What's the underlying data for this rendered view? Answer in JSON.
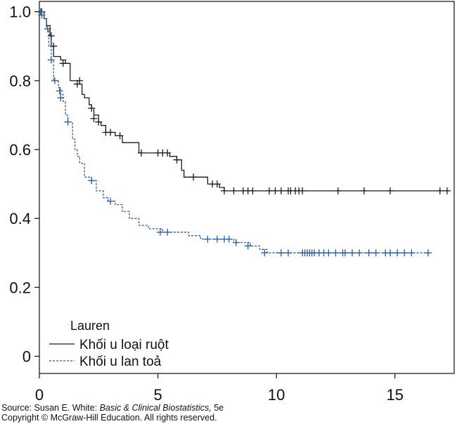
{
  "chart_data": {
    "type": "line",
    "title": "",
    "xlabel": "",
    "ylabel": "",
    "xlim": [
      0,
      17.5
    ],
    "ylim": [
      -0.05,
      1.03
    ],
    "x_ticks": [
      0,
      5,
      10,
      15
    ],
    "x_tick_labels": [
      "0",
      "5",
      "10",
      "15"
    ],
    "y_ticks": [
      0,
      0.2,
      0.4,
      0.6,
      0.8,
      1.0
    ],
    "y_tick_labels": [
      "0",
      "0.2",
      "0.4",
      "0.6",
      "0.8",
      "1.0"
    ],
    "grid": false,
    "legend": {
      "title": "Lauren",
      "placement": "bottom-left",
      "entries": [
        "Khối u loại ruột",
        "Khối u lan toả"
      ]
    },
    "series": [
      {
        "name": "Khối u loại ruột",
        "color": "#1a1a1a",
        "dash": "solid",
        "steps": [
          [
            0,
            1.0
          ],
          [
            0.2,
            0.98
          ],
          [
            0.3,
            0.96
          ],
          [
            0.45,
            0.93
          ],
          [
            0.5,
            0.9
          ],
          [
            0.6,
            0.87
          ],
          [
            0.9,
            0.86
          ],
          [
            1.1,
            0.85
          ],
          [
            1.3,
            0.8
          ],
          [
            1.7,
            0.79
          ],
          [
            1.8,
            0.76
          ],
          [
            1.9,
            0.75
          ],
          [
            2.1,
            0.73
          ],
          [
            2.2,
            0.72
          ],
          [
            2.3,
            0.7
          ],
          [
            2.5,
            0.68
          ],
          [
            2.6,
            0.67
          ],
          [
            2.8,
            0.65
          ],
          [
            3.2,
            0.64
          ],
          [
            3.5,
            0.62
          ],
          [
            4.2,
            0.59
          ],
          [
            5.5,
            0.58
          ],
          [
            5.8,
            0.57
          ],
          [
            6.0,
            0.54
          ],
          [
            6.1,
            0.52
          ],
          [
            7.1,
            0.5
          ],
          [
            7.6,
            0.49
          ],
          [
            7.8,
            0.48
          ],
          [
            17.3,
            0.48
          ]
        ],
        "censored": [
          [
            0.1,
            1.0
          ],
          [
            0.5,
            0.93
          ],
          [
            0.6,
            0.9
          ],
          [
            1.0,
            0.85
          ],
          [
            1.6,
            0.79
          ],
          [
            1.7,
            0.8
          ],
          [
            2.2,
            0.72
          ],
          [
            2.3,
            0.69
          ],
          [
            2.5,
            0.68
          ],
          [
            2.8,
            0.65
          ],
          [
            3.0,
            0.65
          ],
          [
            3.4,
            0.64
          ],
          [
            4.3,
            0.59
          ],
          [
            5.0,
            0.59
          ],
          [
            5.2,
            0.59
          ],
          [
            5.4,
            0.59
          ],
          [
            5.8,
            0.57
          ],
          [
            6.5,
            0.52
          ],
          [
            7.3,
            0.5
          ],
          [
            7.5,
            0.5
          ],
          [
            7.8,
            0.48
          ],
          [
            8.2,
            0.48
          ],
          [
            8.6,
            0.48
          ],
          [
            8.8,
            0.48
          ],
          [
            9.0,
            0.48
          ],
          [
            9.7,
            0.48
          ],
          [
            9.95,
            0.48
          ],
          [
            10.2,
            0.48
          ],
          [
            10.5,
            0.48
          ],
          [
            10.6,
            0.48
          ],
          [
            10.8,
            0.48
          ],
          [
            10.95,
            0.48
          ],
          [
            11.1,
            0.48
          ],
          [
            12.6,
            0.48
          ],
          [
            13.7,
            0.48
          ],
          [
            14.8,
            0.48
          ],
          [
            16.9,
            0.48
          ],
          [
            17.2,
            0.48
          ]
        ]
      },
      {
        "name": "Khối u lan toả",
        "color": "#2a5aa0",
        "dash": "dashed",
        "steps": [
          [
            0,
            1.0
          ],
          [
            0.2,
            0.98
          ],
          [
            0.3,
            0.95
          ],
          [
            0.4,
            0.9
          ],
          [
            0.5,
            0.86
          ],
          [
            0.6,
            0.8
          ],
          [
            0.8,
            0.78
          ],
          [
            0.9,
            0.76
          ],
          [
            1.0,
            0.74
          ],
          [
            1.1,
            0.7
          ],
          [
            1.2,
            0.68
          ],
          [
            1.4,
            0.63
          ],
          [
            1.5,
            0.6
          ],
          [
            1.6,
            0.58
          ],
          [
            1.7,
            0.56
          ],
          [
            1.9,
            0.52
          ],
          [
            2.2,
            0.51
          ],
          [
            2.4,
            0.48
          ],
          [
            2.7,
            0.46
          ],
          [
            2.9,
            0.45
          ],
          [
            3.2,
            0.44
          ],
          [
            3.5,
            0.42
          ],
          [
            3.8,
            0.4
          ],
          [
            4.2,
            0.38
          ],
          [
            4.6,
            0.37
          ],
          [
            5.2,
            0.36
          ],
          [
            6.3,
            0.35
          ],
          [
            6.8,
            0.34
          ],
          [
            7.9,
            0.34
          ],
          [
            8.2,
            0.33
          ],
          [
            8.9,
            0.32
          ],
          [
            9.3,
            0.31
          ],
          [
            9.6,
            0.3
          ],
          [
            16.5,
            0.3
          ]
        ],
        "censored": [
          [
            0.05,
            1.0
          ],
          [
            0.1,
            0.99
          ],
          [
            0.35,
            0.95
          ],
          [
            0.5,
            0.86
          ],
          [
            0.65,
            0.8
          ],
          [
            0.85,
            0.77
          ],
          [
            0.9,
            0.75
          ],
          [
            1.2,
            0.68
          ],
          [
            2.2,
            0.51
          ],
          [
            3.0,
            0.45
          ],
          [
            5.1,
            0.36
          ],
          [
            5.4,
            0.36
          ],
          [
            7.1,
            0.34
          ],
          [
            7.5,
            0.34
          ],
          [
            7.8,
            0.34
          ],
          [
            8.0,
            0.34
          ],
          [
            8.3,
            0.33
          ],
          [
            8.8,
            0.32
          ],
          [
            9.5,
            0.3
          ],
          [
            10.2,
            0.3
          ],
          [
            10.5,
            0.3
          ],
          [
            11.1,
            0.3
          ],
          [
            11.2,
            0.3
          ],
          [
            11.3,
            0.3
          ],
          [
            11.4,
            0.3
          ],
          [
            11.5,
            0.3
          ],
          [
            11.6,
            0.3
          ],
          [
            11.8,
            0.3
          ],
          [
            12.0,
            0.3
          ],
          [
            12.2,
            0.3
          ],
          [
            12.5,
            0.3
          ],
          [
            12.8,
            0.3
          ],
          [
            12.9,
            0.3
          ],
          [
            13.2,
            0.3
          ],
          [
            13.5,
            0.3
          ],
          [
            13.9,
            0.3
          ],
          [
            14.2,
            0.3
          ],
          [
            14.6,
            0.3
          ],
          [
            14.8,
            0.3
          ],
          [
            15.1,
            0.3
          ],
          [
            15.4,
            0.3
          ],
          [
            15.7,
            0.3
          ],
          [
            16.4,
            0.3
          ]
        ]
      }
    ]
  },
  "credit": {
    "source_prefix": "Source: Susan E. White: ",
    "source_title": "Basic & Clinical Biostatistics,",
    "source_suffix": " 5e",
    "copyright": "Copyright © McGraw-Hill Education. All rights reserved."
  }
}
